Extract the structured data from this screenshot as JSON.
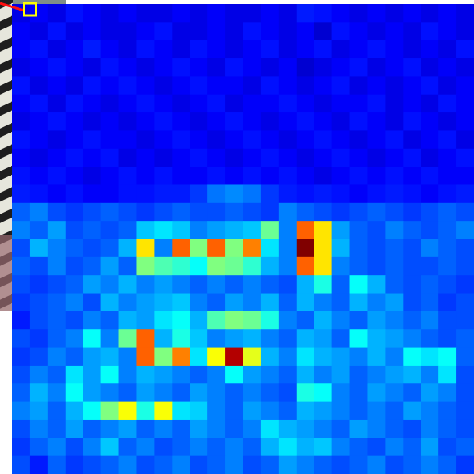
{
  "chart_data": {
    "type": "heatmap",
    "colormap": "jet",
    "values": [
      [
        0.1,
        0.12,
        0.1,
        0.14,
        0.12,
        0.1,
        0.12,
        0.1,
        0.1,
        0.12,
        0.1,
        0.12,
        0.1,
        0.1,
        0.12,
        0.1,
        0.15,
        0.14,
        0.12,
        0.1,
        0.12,
        0.1,
        0.12,
        0.1,
        0.12,
        0.1
      ],
      [
        0.12,
        0.1,
        0.14,
        0.1,
        0.12,
        0.1,
        0.1,
        0.12,
        0.14,
        0.1,
        0.1,
        0.12,
        0.1,
        0.14,
        0.12,
        0.1,
        0.12,
        0.08,
        0.14,
        0.12,
        0.1,
        0.12,
        0.1,
        0.14,
        0.12,
        0.1
      ],
      [
        0.12,
        0.14,
        0.1,
        0.12,
        0.15,
        0.12,
        0.1,
        0.14,
        0.12,
        0.1,
        0.14,
        0.12,
        0.1,
        0.12,
        0.14,
        0.1,
        0.12,
        0.14,
        0.1,
        0.12,
        0.14,
        0.12,
        0.1,
        0.12,
        0.1,
        0.14
      ],
      [
        0.1,
        0.12,
        0.14,
        0.12,
        0.1,
        0.14,
        0.12,
        0.1,
        0.12,
        0.14,
        0.12,
        0.1,
        0.14,
        0.12,
        0.1,
        0.12,
        0.08,
        0.1,
        0.12,
        0.14,
        0.1,
        0.12,
        0.14,
        0.1,
        0.12,
        0.1
      ],
      [
        0.14,
        0.1,
        0.12,
        0.1,
        0.14,
        0.12,
        0.14,
        0.12,
        0.1,
        0.12,
        0.14,
        0.12,
        0.12,
        0.1,
        0.14,
        0.12,
        0.1,
        0.12,
        0.14,
        0.1,
        0.12,
        0.1,
        0.12,
        0.14,
        0.1,
        0.12
      ],
      [
        0.12,
        0.14,
        0.1,
        0.14,
        0.12,
        0.1,
        0.12,
        0.14,
        0.12,
        0.1,
        0.12,
        0.14,
        0.1,
        0.12,
        0.12,
        0.14,
        0.12,
        0.1,
        0.12,
        0.12,
        0.14,
        0.1,
        0.12,
        0.1,
        0.14,
        0.12
      ],
      [
        0.1,
        0.12,
        0.14,
        0.12,
        0.1,
        0.12,
        0.1,
        0.12,
        0.14,
        0.12,
        0.1,
        0.12,
        0.14,
        0.12,
        0.1,
        0.12,
        0.14,
        0.12,
        0.1,
        0.14,
        0.12,
        0.1,
        0.14,
        0.12,
        0.1,
        0.12
      ],
      [
        0.14,
        0.12,
        0.1,
        0.12,
        0.14,
        0.12,
        0.12,
        0.1,
        0.12,
        0.14,
        0.12,
        0.1,
        0.12,
        0.14,
        0.12,
        0.1,
        0.12,
        0.14,
        0.12,
        0.1,
        0.12,
        0.14,
        0.1,
        0.12,
        0.14,
        0.1
      ],
      [
        0.12,
        0.1,
        0.12,
        0.14,
        0.12,
        0.14,
        0.1,
        0.12,
        0.1,
        0.12,
        0.14,
        0.12,
        0.1,
        0.12,
        0.14,
        0.12,
        0.1,
        0.12,
        0.14,
        0.12,
        0.1,
        0.12,
        0.14,
        0.1,
        0.12,
        0.14
      ],
      [
        0.14,
        0.12,
        0.14,
        0.12,
        0.1,
        0.12,
        0.14,
        0.12,
        0.14,
        0.12,
        0.12,
        0.14,
        0.12,
        0.14,
        0.12,
        0.14,
        0.12,
        0.1,
        0.12,
        0.14,
        0.12,
        0.14,
        0.12,
        0.14,
        0.12,
        0.12
      ],
      [
        0.15,
        0.14,
        0.12,
        0.14,
        0.12,
        0.12,
        0.14,
        0.14,
        0.15,
        0.15,
        0.18,
        0.24,
        0.26,
        0.24,
        0.18,
        0.15,
        0.14,
        0.15,
        0.14,
        0.12,
        0.14,
        0.15,
        0.14,
        0.12,
        0.14,
        0.15
      ],
      [
        0.22,
        0.25,
        0.2,
        0.18,
        0.2,
        0.22,
        0.2,
        0.18,
        0.2,
        0.22,
        0.2,
        0.2,
        0.22,
        0.2,
        0.18,
        0.25,
        0.22,
        0.2,
        0.18,
        0.2,
        0.22,
        0.2,
        0.18,
        0.2,
        0.22,
        0.2
      ],
      [
        0.25,
        0.22,
        0.28,
        0.2,
        0.22,
        0.2,
        0.22,
        0.32,
        0.35,
        0.32,
        0.25,
        0.28,
        0.3,
        0.32,
        0.48,
        0.25,
        0.78,
        0.65,
        0.28,
        0.22,
        0.2,
        0.25,
        0.22,
        0.2,
        0.22,
        0.25
      ],
      [
        0.2,
        0.3,
        0.25,
        0.22,
        0.2,
        0.22,
        0.3,
        0.65,
        0.25,
        0.78,
        0.5,
        0.78,
        0.5,
        0.75,
        0.35,
        0.25,
        1.0,
        0.65,
        0.3,
        0.22,
        0.2,
        0.22,
        0.2,
        0.25,
        0.22,
        0.2
      ],
      [
        0.22,
        0.2,
        0.25,
        0.2,
        0.22,
        0.28,
        0.22,
        0.5,
        0.45,
        0.42,
        0.38,
        0.5,
        0.48,
        0.42,
        0.3,
        0.25,
        0.78,
        0.65,
        0.25,
        0.22,
        0.2,
        0.22,
        0.2,
        0.2,
        0.22,
        0.2
      ],
      [
        0.2,
        0.18,
        0.2,
        0.22,
        0.28,
        0.25,
        0.3,
        0.25,
        0.28,
        0.25,
        0.22,
        0.25,
        0.22,
        0.25,
        0.22,
        0.2,
        0.3,
        0.4,
        0.22,
        0.38,
        0.3,
        0.22,
        0.2,
        0.22,
        0.2,
        0.18
      ],
      [
        0.18,
        0.2,
        0.22,
        0.25,
        0.2,
        0.3,
        0.25,
        0.28,
        0.3,
        0.32,
        0.25,
        0.22,
        0.28,
        0.25,
        0.3,
        0.22,
        0.3,
        0.25,
        0.22,
        0.3,
        0.25,
        0.28,
        0.2,
        0.22,
        0.18,
        0.2
      ],
      [
        0.15,
        0.2,
        0.22,
        0.2,
        0.25,
        0.22,
        0.3,
        0.28,
        0.35,
        0.38,
        0.3,
        0.45,
        0.5,
        0.48,
        0.4,
        0.25,
        0.22,
        0.3,
        0.25,
        0.22,
        0.28,
        0.25,
        0.22,
        0.25,
        0.2,
        0.2
      ],
      [
        0.2,
        0.18,
        0.22,
        0.25,
        0.38,
        0.25,
        0.48,
        0.78,
        0.3,
        0.4,
        0.32,
        0.25,
        0.28,
        0.3,
        0.25,
        0.22,
        0.3,
        0.28,
        0.22,
        0.38,
        0.3,
        0.28,
        0.25,
        0.22,
        0.2,
        0.22
      ],
      [
        0.18,
        0.2,
        0.25,
        0.22,
        0.28,
        0.3,
        0.25,
        0.78,
        0.5,
        0.75,
        0.35,
        0.62,
        0.95,
        0.6,
        0.3,
        0.25,
        0.35,
        0.3,
        0.28,
        0.25,
        0.3,
        0.25,
        0.38,
        0.35,
        0.38,
        0.22
      ],
      [
        0.2,
        0.25,
        0.22,
        0.35,
        0.28,
        0.38,
        0.25,
        0.3,
        0.28,
        0.25,
        0.22,
        0.25,
        0.38,
        0.28,
        0.25,
        0.22,
        0.3,
        0.25,
        0.28,
        0.22,
        0.25,
        0.28,
        0.3,
        0.25,
        0.35,
        0.2
      ],
      [
        0.22,
        0.3,
        0.25,
        0.38,
        0.28,
        0.25,
        0.22,
        0.28,
        0.25,
        0.22,
        0.28,
        0.25,
        0.22,
        0.25,
        0.22,
        0.2,
        0.4,
        0.38,
        0.25,
        0.22,
        0.28,
        0.25,
        0.22,
        0.28,
        0.25,
        0.2
      ],
      [
        0.25,
        0.28,
        0.22,
        0.3,
        0.38,
        0.5,
        0.62,
        0.4,
        0.62,
        0.35,
        0.33,
        0.25,
        0.22,
        0.28,
        0.25,
        0.22,
        0.3,
        0.28,
        0.25,
        0.22,
        0.25,
        0.22,
        0.28,
        0.25,
        0.22,
        0.2
      ],
      [
        0.2,
        0.25,
        0.22,
        0.28,
        0.22,
        0.25,
        0.28,
        0.22,
        0.25,
        0.22,
        0.28,
        0.25,
        0.22,
        0.25,
        0.35,
        0.3,
        0.28,
        0.25,
        0.22,
        0.28,
        0.25,
        0.22,
        0.2,
        0.25,
        0.22,
        0.2
      ],
      [
        0.18,
        0.22,
        0.25,
        0.2,
        0.25,
        0.32,
        0.22,
        0.25,
        0.2,
        0.22,
        0.25,
        0.22,
        0.25,
        0.22,
        0.3,
        0.35,
        0.3,
        0.32,
        0.25,
        0.22,
        0.2,
        0.25,
        0.22,
        0.28,
        0.2,
        0.22
      ],
      [
        0.2,
        0.15,
        0.22,
        0.18,
        0.2,
        0.22,
        0.25,
        0.2,
        0.22,
        0.25,
        0.2,
        0.22,
        0.25,
        0.2,
        0.22,
        0.28,
        0.25,
        0.22,
        0.2,
        0.22,
        0.25,
        0.2,
        0.22,
        0.25,
        0.22,
        0.18
      ]
    ]
  }
}
